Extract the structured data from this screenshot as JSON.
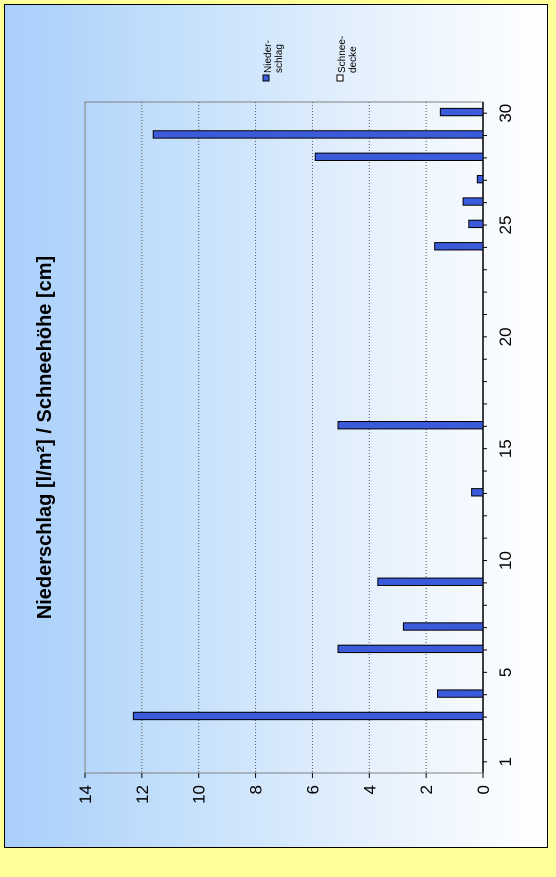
{
  "chart_data": {
    "type": "bar",
    "orientation": "rotated-90-ccw",
    "title": "Niederschlag [l/m²] / Schneehöhe [cm]",
    "x": [
      1,
      2,
      3,
      4,
      5,
      6,
      7,
      8,
      9,
      10,
      11,
      12,
      13,
      14,
      15,
      16,
      17,
      18,
      19,
      20,
      21,
      22,
      23,
      24,
      25,
      26,
      27,
      28,
      29,
      30
    ],
    "x_ticks": [
      1,
      5,
      10,
      15,
      20,
      25,
      30
    ],
    "xlim": [
      0.5,
      30.5
    ],
    "ylim": [
      0,
      14
    ],
    "y_ticks": [
      0,
      2,
      4,
      6,
      8,
      10,
      12,
      14
    ],
    "grid": true,
    "legend_position": "top-right",
    "series": [
      {
        "name": "Nieder-\nschlag",
        "legend_lines": [
          "Nieder-",
          "schlag"
        ],
        "color": "#3b5bdb",
        "values": [
          0,
          0,
          12.3,
          1.6,
          0,
          5.1,
          2.8,
          0,
          3.7,
          0,
          0,
          0,
          0.4,
          0,
          0,
          5.1,
          0,
          0,
          0,
          0,
          0,
          0,
          0,
          1.7,
          0.5,
          0.7,
          0.2,
          5.9,
          11.6,
          1.5
        ]
      },
      {
        "name": "Schnee-\ndecke",
        "legend_lines": [
          "Schnee-",
          "decke"
        ],
        "color": "#ffffff",
        "values": [
          0,
          0,
          0,
          0,
          0,
          0,
          0,
          0,
          0,
          0,
          0,
          0,
          0,
          0,
          0,
          0,
          0,
          0,
          0,
          0,
          0,
          0,
          0,
          0,
          0,
          0,
          0,
          0,
          0,
          0
        ]
      }
    ]
  }
}
